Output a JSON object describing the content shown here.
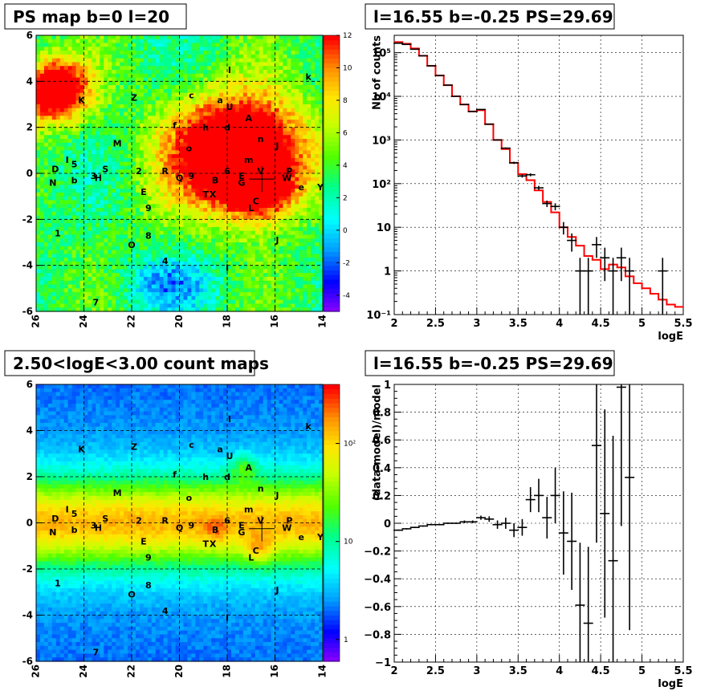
{
  "chart_data": [
    {
      "type": "heatmap",
      "title": "PS map b=0 l=20",
      "xlim": [
        26,
        14
      ],
      "ylim": [
        -6,
        6
      ],
      "xticks": [
        "26",
        "24",
        "22",
        "20",
        "18",
        "16",
        "14"
      ],
      "yticks": [
        "-6",
        "-4",
        "-2",
        "0",
        "2",
        "4",
        "6"
      ],
      "grid": true,
      "colorbar": {
        "scale": "linear",
        "range": [
          -5,
          12
        ],
        "ticks": [
          "-4",
          "-2",
          "0",
          "2",
          "4",
          "6",
          "8",
          "10",
          "12"
        ]
      },
      "markers": [
        {
          "label": "K",
          "l": 24.1,
          "b": 3.2
        },
        {
          "label": "Z",
          "l": 21.9,
          "b": 3.3
        },
        {
          "label": "c",
          "l": 19.5,
          "b": 3.4
        },
        {
          "label": "I",
          "l": 17.9,
          "b": 4.5
        },
        {
          "label": "a",
          "l": 18.3,
          "b": 3.2
        },
        {
          "label": "k",
          "l": 14.6,
          "b": 4.2
        },
        {
          "label": "U",
          "l": 17.9,
          "b": 2.9
        },
        {
          "label": "A",
          "l": 17.1,
          "b": 2.4
        },
        {
          "label": "f",
          "l": 20.2,
          "b": 2.1
        },
        {
          "label": "h",
          "l": 18.9,
          "b": 2.0
        },
        {
          "label": "d",
          "l": 18.0,
          "b": 2.0
        },
        {
          "label": "n",
          "l": 16.6,
          "b": 1.5
        },
        {
          "label": "J",
          "l": 15.9,
          "b": 1.2
        },
        {
          "label": "M",
          "l": 22.6,
          "b": 1.3
        },
        {
          "label": "o",
          "l": 19.6,
          "b": 1.1
        },
        {
          "label": "m",
          "l": 17.1,
          "b": 0.6
        },
        {
          "label": "I",
          "l": 24.7,
          "b": 0.6
        },
        {
          "label": "5",
          "l": 24.4,
          "b": 0.4
        },
        {
          "label": "D",
          "l": 25.2,
          "b": 0.2
        },
        {
          "label": "S",
          "l": 23.1,
          "b": 0.2
        },
        {
          "label": "2",
          "l": 21.7,
          "b": 0.1
        },
        {
          "label": "R",
          "l": 20.6,
          "b": 0.1
        },
        {
          "label": "6",
          "l": 18.0,
          "b": 0.1
        },
        {
          "label": "E",
          "l": 17.4,
          "b": -0.1
        },
        {
          "label": "V",
          "l": 16.6,
          "b": 0.1
        },
        {
          "label": "P",
          "l": 15.4,
          "b": 0.1
        },
        {
          "label": "3",
          "l": 23.6,
          "b": -0.1
        },
        {
          "label": "H",
          "l": 23.4,
          "b": -0.2
        },
        {
          "label": "Q",
          "l": 20.0,
          "b": -0.2
        },
        {
          "label": "9",
          "l": 19.5,
          "b": -0.1
        },
        {
          "label": "B",
          "l": 18.5,
          "b": -0.3
        },
        {
          "label": "G",
          "l": 17.4,
          "b": -0.4
        },
        {
          "label": "W",
          "l": 15.5,
          "b": -0.2
        },
        {
          "label": "N",
          "l": 25.3,
          "b": -0.4
        },
        {
          "label": "b",
          "l": 24.4,
          "b": -0.3
        },
        {
          "label": "e",
          "l": 14.9,
          "b": -0.6
        },
        {
          "label": "Y",
          "l": 14.1,
          "b": -0.6
        },
        {
          "label": "E",
          "l": 21.5,
          "b": -0.8
        },
        {
          "label": "T",
          "l": 18.9,
          "b": -0.9
        },
        {
          "label": "X",
          "l": 18.6,
          "b": -0.9
        },
        {
          "label": "C",
          "l": 16.8,
          "b": -1.2
        },
        {
          "label": "L",
          "l": 17.0,
          "b": -1.5
        },
        {
          "label": "9",
          "l": 21.3,
          "b": -1.5
        },
        {
          "label": "1",
          "l": 25.1,
          "b": -2.6
        },
        {
          "label": "8",
          "l": 21.3,
          "b": -2.7
        },
        {
          "label": "J",
          "l": 15.9,
          "b": -2.9
        },
        {
          "label": "O",
          "l": 22.0,
          "b": -3.1
        },
        {
          "label": "4",
          "l": 20.6,
          "b": -3.8
        },
        {
          "label": "I",
          "l": 18.0,
          "b": -4.1
        },
        {
          "label": "7",
          "l": 23.5,
          "b": -5.6
        }
      ],
      "current_source": {
        "l": 16.55,
        "b": -0.25
      }
    },
    {
      "type": "line",
      "title": "l=16.55 b=-0.25 PS=29.69",
      "xlabel": "logE",
      "ylabel": "Nb of counts",
      "xlim": [
        2,
        5.5
      ],
      "ylim": [
        0.1,
        250000
      ],
      "yscale": "log",
      "xticks": [
        "2",
        "2.5",
        "3",
        "3.5",
        "4",
        "4.5",
        "5",
        "5.5"
      ],
      "yticks": [
        "10⁻¹",
        "1",
        "10",
        "10²",
        "10³",
        "10⁴",
        "10⁵"
      ],
      "grid": true,
      "series": [
        {
          "kind": "data",
          "x": [
            2.05,
            2.15,
            2.25,
            2.35,
            2.45,
            2.55,
            2.65,
            2.75,
            2.85,
            2.95,
            3.05,
            3.15,
            3.25,
            3.35,
            3.45,
            3.55,
            3.65,
            3.75,
            3.85,
            3.95,
            4.05,
            4.15,
            4.25,
            4.35,
            4.45,
            4.55,
            4.65,
            4.75,
            4.85,
            4.95,
            5.05,
            5.15,
            5.25,
            5.35,
            5.45
          ],
          "y": [
            165000,
            155000,
            120000,
            85000,
            50000,
            30000,
            18000,
            10000,
            6500,
            4500,
            5000,
            2300,
            1000,
            650,
            300,
            150,
            160,
            80,
            35,
            30,
            10,
            5,
            1,
            1,
            4,
            2,
            1,
            2,
            1,
            null,
            null,
            null,
            1,
            null,
            null
          ]
        },
        {
          "kind": "model",
          "color": "#ff0000",
          "edges": [
            2.0,
            2.1,
            2.2,
            2.3,
            2.4,
            2.5,
            2.6,
            2.7,
            2.8,
            2.9,
            3.0,
            3.1,
            3.2,
            3.3,
            3.4,
            3.5,
            3.6,
            3.7,
            3.8,
            3.9,
            4.0,
            4.1,
            4.2,
            4.3,
            4.4,
            4.5,
            4.6,
            4.7,
            4.8,
            4.9,
            5.0,
            5.1,
            5.2,
            5.3,
            5.4,
            5.5
          ],
          "y": [
            175000,
            160000,
            125000,
            85000,
            50000,
            30000,
            18000,
            10000,
            6500,
            4500,
            4800,
            2300,
            1000,
            620,
            300,
            165,
            120,
            70,
            38,
            22,
            10,
            6,
            3.8,
            2.2,
            1.8,
            1.1,
            1.4,
            1.2,
            0.75,
            0.52,
            0.4,
            0.3,
            0.22,
            0.17,
            0.15
          ]
        }
      ]
    },
    {
      "type": "heatmap",
      "title": "2.50<logE<3.00 count maps",
      "xlim": [
        26,
        14
      ],
      "ylim": [
        -6,
        6
      ],
      "xticks": [
        "26",
        "24",
        "22",
        "20",
        "18",
        "16",
        "14"
      ],
      "yticks": [
        "-6",
        "-4",
        "-2",
        "0",
        "2",
        "4",
        "6"
      ],
      "grid": true,
      "colorbar": {
        "scale": "log",
        "range": [
          0.6,
          400
        ],
        "ticks": [
          "1",
          "10",
          "10²"
        ]
      },
      "markers": "same as PS map",
      "current_source": {
        "l": 16.55,
        "b": -0.25
      }
    },
    {
      "type": "scatter",
      "title": "l=16.55 b=-0.25 PS=29.69",
      "xlabel": "logE",
      "ylabel": "(data-model)/model",
      "xlim": [
        2,
        5.5
      ],
      "ylim": [
        -1,
        1
      ],
      "xticks": [
        "2",
        "2.5",
        "3",
        "3.5",
        "4",
        "4.5",
        "5",
        "5.5"
      ],
      "yticks": [
        "−1",
        "−0.8",
        "−0.6",
        "−0.4",
        "−0.2",
        "0",
        "0.2",
        "0.4",
        "0.6",
        "0.8",
        "1"
      ],
      "grid": true,
      "x": [
        2.05,
        2.15,
        2.25,
        2.35,
        2.45,
        2.55,
        2.65,
        2.75,
        2.85,
        2.95,
        3.05,
        3.15,
        3.25,
        3.35,
        3.45,
        3.55,
        3.65,
        3.75,
        3.85,
        3.95,
        4.05,
        4.15,
        4.25,
        4.35,
        4.45,
        4.55,
        4.65,
        4.75,
        4.85
      ],
      "y": [
        -0.05,
        -0.04,
        -0.03,
        -0.02,
        -0.01,
        -0.01,
        0.0,
        0.0,
        0.01,
        0.01,
        0.04,
        0.03,
        -0.01,
        0.0,
        -0.05,
        -0.03,
        0.17,
        0.2,
        0.04,
        0.2,
        -0.07,
        -0.13,
        -0.59,
        -0.72,
        0.56,
        0.07,
        -0.27,
        0.98,
        0.33
      ],
      "yerr": [
        0.005,
        0.005,
        0.005,
        0.005,
        0.005,
        0.005,
        0.005,
        0.005,
        0.01,
        0.01,
        0.015,
        0.02,
        0.03,
        0.04,
        0.05,
        0.06,
        0.09,
        0.12,
        0.15,
        0.2,
        0.3,
        0.35,
        0.45,
        0.55,
        0.7,
        0.75,
        0.9,
        1.0,
        1.1
      ]
    }
  ]
}
